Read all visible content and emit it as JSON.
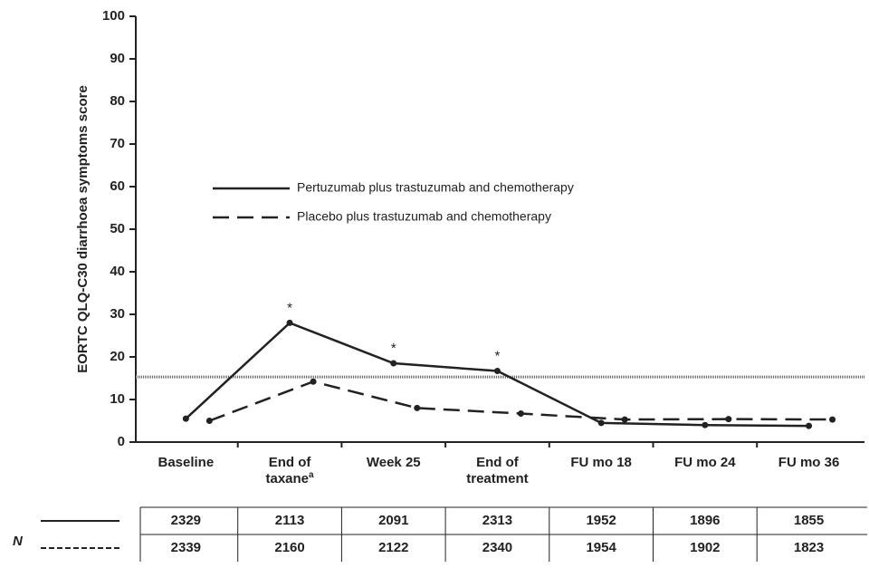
{
  "chart_data": {
    "type": "line",
    "ylabel": "EORTC QLQ-C30 diarrhoea symptoms score",
    "categories": [
      "Baseline",
      "End of taxane",
      "Week 25",
      "End of treatment",
      "FU mo 18",
      "FU mo 24",
      "FU mo 36"
    ],
    "category_footnotes": [
      null,
      "a",
      null,
      null,
      null,
      null,
      null
    ],
    "series": [
      {
        "name": "Pertuzumab plus trastuzumab and chemotherapy",
        "color": "#222222",
        "dash": "solid",
        "values": [
          5.5,
          28,
          18.5,
          16.7,
          4.5,
          4,
          3.8
        ],
        "markers": [
          null,
          "*",
          "*",
          "*",
          null,
          null,
          null
        ]
      },
      {
        "name": "Placebo plus trastuzumab and chemotherapy",
        "color": "#222222",
        "dash": "dashed",
        "values": [
          5,
          14.2,
          8,
          6.7,
          5.3,
          5.4,
          5.3
        ]
      }
    ],
    "reference_line": 15.3,
    "ylim": [
      0,
      100
    ],
    "yticks": [
      0,
      10,
      20,
      30,
      40,
      50,
      60,
      70,
      80,
      90,
      100
    ],
    "n_table": {
      "label": "N",
      "rows": [
        [
          2329,
          2113,
          2091,
          2313,
          1952,
          1896,
          1855
        ],
        [
          2339,
          2160,
          2122,
          2340,
          1954,
          1902,
          1823
        ]
      ]
    }
  }
}
